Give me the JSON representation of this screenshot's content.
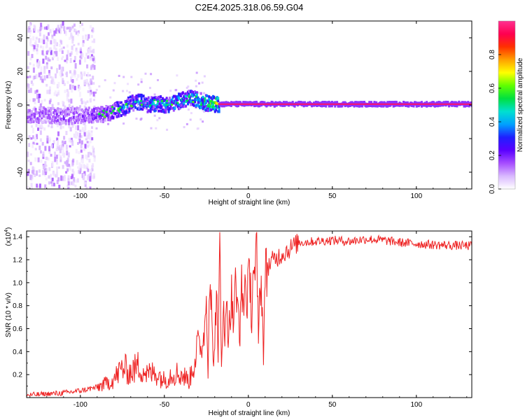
{
  "title": "C2E4.2025.318.06.59.G04",
  "chart_data": [
    {
      "type": "heatmap",
      "xlabel": "Height of straight line (km)",
      "ylabel": "Frequency (Hz)",
      "xlim": [
        -132,
        133
      ],
      "ylim": [
        -50,
        50
      ],
      "xticks": [
        -100,
        -50,
        0,
        50,
        100
      ],
      "yticks": [
        -40,
        -20,
        0,
        20,
        40
      ],
      "colorbar": {
        "label": "Normalized spectral amplitude",
        "range": [
          0.0,
          1.0
        ],
        "ticks": [
          "0.0",
          "0.2",
          "0.4",
          "0.6",
          "0.8"
        ],
        "tick_values": [
          0.0,
          0.2,
          0.4,
          0.6,
          0.8
        ],
        "colors": [
          "#ffffff",
          "#d9b8ff",
          "#a64dff",
          "#5a00ff",
          "#1f1fff",
          "#00a0ff",
          "#00e0d0",
          "#00e040",
          "#60ff00",
          "#ffff00",
          "#ffa000",
          "#ff3000",
          "#ff0050",
          "#ff3090"
        ]
      },
      "signal_track": [
        {
          "x": -132,
          "freq": -6,
          "amp": 0.2
        },
        {
          "x": -120,
          "freq": -6,
          "amp": 0.2
        },
        {
          "x": -110,
          "freq": -7,
          "amp": 0.22
        },
        {
          "x": -100,
          "freq": -6,
          "amp": 0.22
        },
        {
          "x": -90,
          "freq": -6,
          "amp": 0.25
        },
        {
          "x": -83,
          "freq": -5,
          "amp": 0.28
        },
        {
          "x": -80,
          "freq": -3,
          "amp": 0.35
        },
        {
          "x": -75,
          "freq": -2,
          "amp": 0.4
        },
        {
          "x": -70,
          "freq": 1,
          "amp": 0.42
        },
        {
          "x": -65,
          "freq": 2,
          "amp": 0.45
        },
        {
          "x": -60,
          "freq": 0,
          "amp": 0.45
        },
        {
          "x": -55,
          "freq": 1,
          "amp": 0.45
        },
        {
          "x": -50,
          "freq": 0,
          "amp": 0.45
        },
        {
          "x": -45,
          "freq": 1,
          "amp": 0.48
        },
        {
          "x": -40,
          "freq": 3,
          "amp": 0.5
        },
        {
          "x": -35,
          "freq": 4,
          "amp": 0.5
        },
        {
          "x": -30,
          "freq": 3,
          "amp": 0.52
        },
        {
          "x": -25,
          "freq": 1,
          "amp": 0.6
        },
        {
          "x": -20,
          "freq": 0.5,
          "amp": 0.75
        },
        {
          "x": -10,
          "freq": 0.5,
          "amp": 0.85
        },
        {
          "x": 0,
          "freq": 0.5,
          "amp": 0.9
        },
        {
          "x": 10,
          "freq": 0.5,
          "amp": 0.95
        },
        {
          "x": 50,
          "freq": 0.5,
          "amp": 0.95
        },
        {
          "x": 100,
          "freq": 0.5,
          "amp": 0.95
        },
        {
          "x": 133,
          "freq": 0.5,
          "amp": 0.95
        }
      ]
    },
    {
      "type": "line",
      "xlabel": "Height of straight line (km)",
      "ylabel": "SNR (10 * v/v)",
      "yscale_label": "(x10",
      "yscale_exponent": "4",
      "yscale_close": ")",
      "xlim": [
        -132,
        133
      ],
      "ylim": [
        0,
        14500
      ],
      "xticks": [
        -100,
        -50,
        0,
        50,
        100
      ],
      "yticks": [
        2000,
        4000,
        6000,
        8000,
        10000,
        12000,
        14000
      ],
      "ytick_labels": [
        "0.2",
        "0.4",
        "0.6",
        "0.8",
        "1.0",
        "1.2",
        "1.4"
      ],
      "series": [
        {
          "name": "SNR",
          "color": "#ee2222",
          "x": [
            -132,
            -120,
            -110,
            -100,
            -90,
            -85,
            -80,
            -75,
            -70,
            -65,
            -60,
            -55,
            -50,
            -45,
            -40,
            -35,
            -30,
            -28,
            -26,
            -25,
            -24,
            -23,
            -22,
            -21,
            -20,
            -19,
            -18,
            -17,
            -16,
            -15,
            -14,
            -13,
            -12,
            -11,
            -10,
            -9,
            -8,
            -7,
            -6,
            -5,
            -4,
            -3,
            -2,
            -1,
            0,
            1,
            2,
            3,
            4,
            5,
            6,
            7,
            8,
            9,
            10,
            12,
            15,
            20,
            25,
            30,
            40,
            50,
            60,
            70,
            80,
            90,
            100,
            110,
            120,
            133
          ],
          "values": [
            200,
            300,
            400,
            600,
            900,
            1200,
            1600,
            2600,
            2200,
            2800,
            2000,
            2200,
            1500,
            2200,
            2000,
            1500,
            4800,
            4000,
            6000,
            9000,
            2200,
            11500,
            8000,
            3000,
            4500,
            10000,
            2500,
            14300,
            3000,
            8500,
            4000,
            10000,
            5000,
            7000,
            9000,
            6000,
            10500,
            7500,
            8000,
            5500,
            9500,
            8000,
            10000,
            8500,
            9500,
            10500,
            7000,
            12000,
            9500,
            13800,
            4000,
            11000,
            9000,
            3700,
            10500,
            11500,
            12000,
            12500,
            13000,
            13500,
            13600,
            13700,
            13600,
            13800,
            13700,
            13500,
            13400,
            13300,
            13250,
            13200
          ]
        }
      ]
    }
  ]
}
